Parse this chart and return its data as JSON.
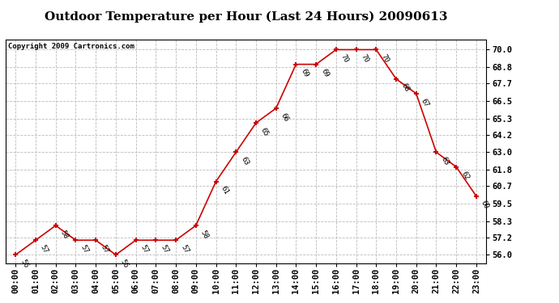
{
  "title": "Outdoor Temperature per Hour (Last 24 Hours) 20090613",
  "copyright": "Copyright 2009 Cartronics.com",
  "hours": [
    "00:00",
    "01:00",
    "02:00",
    "03:00",
    "04:00",
    "05:00",
    "06:00",
    "07:00",
    "08:00",
    "09:00",
    "10:00",
    "11:00",
    "12:00",
    "13:00",
    "14:00",
    "15:00",
    "16:00",
    "17:00",
    "18:00",
    "19:00",
    "20:00",
    "21:00",
    "22:00",
    "23:00"
  ],
  "temps": [
    56,
    57,
    58,
    57,
    57,
    56,
    57,
    57,
    57,
    58,
    61,
    63,
    65,
    66,
    69,
    69,
    70,
    70,
    70,
    68,
    67,
    63,
    62,
    60
  ],
  "ylim": [
    55.4,
    70.7
  ],
  "yticks": [
    56.0,
    57.2,
    58.3,
    59.5,
    60.7,
    61.8,
    63.0,
    64.2,
    65.3,
    66.5,
    67.7,
    68.8,
    70.0
  ],
  "line_color": "#cc0000",
  "marker_color": "#cc0000",
  "bg_color": "#ffffff",
  "plot_bg_color": "#ffffff",
  "grid_color": "#bbbbbb",
  "title_fontsize": 11,
  "copyright_fontsize": 6.5,
  "label_fontsize": 6.5,
  "tick_fontsize": 7.5
}
